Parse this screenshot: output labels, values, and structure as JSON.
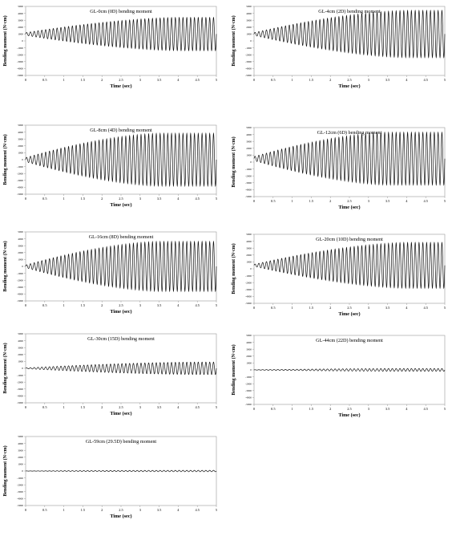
{
  "chart_data": [
    {
      "type": "line",
      "title": "GL-0cm (0D) bending moment",
      "xlabel": "Time (sec)",
      "ylabel": "Bending moment (N·cm)",
      "xlim": [
        0,
        5
      ],
      "ylim": [
        -5000,
        5000
      ],
      "xticks": [
        "0",
        "0.5",
        "1",
        "1.5",
        "2",
        "2.5",
        "3",
        "3.5",
        "4",
        "4.5",
        "5"
      ],
      "yticks": [
        "-5000",
        "-4000",
        "-3000",
        "-2000",
        "-1000",
        "0",
        "1000",
        "2000",
        "3000",
        "4000",
        "5000"
      ],
      "series": [
        {
          "frequency_hz": 10,
          "offset": 1000,
          "amplitude_start": 200,
          "amplitude_end": 2400,
          "ramp_end_time": 4
        }
      ]
    },
    {
      "type": "line",
      "title": "GL-4cm (2D) bending moment",
      "xlabel": "Time (sec)",
      "ylabel": "Bending moment (N·cm)",
      "xlim": [
        0,
        5
      ],
      "ylim": [
        -5000,
        5000
      ],
      "xticks": [
        "0",
        "0.5",
        "1",
        "1.5",
        "2",
        "2.5",
        "3",
        "3.5",
        "4",
        "4.5",
        "5"
      ],
      "yticks": [
        "-5000",
        "-4000",
        "-3000",
        "-2000",
        "-1000",
        "0",
        "1000",
        "2000",
        "3000",
        "4000",
        "5000"
      ],
      "series": [
        {
          "frequency_hz": 10,
          "offset": 1000,
          "amplitude_start": 200,
          "amplitude_end": 3400,
          "ramp_end_time": 4
        }
      ]
    },
    {
      "type": "line",
      "title": "GL-8cm (4D) bending moment",
      "xlabel": "Time (sec)",
      "ylabel": "Bending moment (N·cm)",
      "xlim": [
        0,
        5
      ],
      "ylim": [
        -5000,
        5000
      ],
      "xticks": [
        "0",
        "0.5",
        "1",
        "1.5",
        "2",
        "2.5",
        "3",
        "3.5",
        "4",
        "4.5",
        "5"
      ],
      "yticks": [
        "-5000",
        "-4000",
        "-3000",
        "-2000",
        "-1000",
        "0",
        "1000",
        "2000",
        "3000",
        "4000",
        "5000"
      ],
      "series": [
        {
          "frequency_hz": 10,
          "offset": 0,
          "amplitude_start": 300,
          "amplitude_end": 3800,
          "ramp_end_time": 3.5
        }
      ]
    },
    {
      "type": "line",
      "title": "GL-12cm (6D) bending moment",
      "xlabel": "Time (sec)",
      "ylabel": "Bending moment (N·cm)",
      "xlim": [
        0,
        5
      ],
      "ylim": [
        -5000,
        5000
      ],
      "xticks": [
        "0",
        "0.5",
        "1",
        "1.5",
        "2",
        "2.5",
        "3",
        "3.5",
        "4",
        "4.5",
        "5"
      ],
      "yticks": [
        "-5000",
        "-4000",
        "-3000",
        "-2000",
        "-1000",
        "0",
        "1000",
        "2000",
        "3000",
        "4000",
        "5000"
      ],
      "series": [
        {
          "frequency_hz": 10,
          "offset": 500,
          "amplitude_start": 300,
          "amplitude_end": 3800,
          "ramp_end_time": 3.5
        }
      ]
    },
    {
      "type": "line",
      "title": "GL-16cm (8D) bending moment",
      "xlabel": "Time (sec)",
      "ylabel": "Bending moment (N·cm)",
      "xlim": [
        0,
        5
      ],
      "ylim": [
        -5000,
        5000
      ],
      "xticks": [
        "0",
        "0.5",
        "1",
        "1.5",
        "2",
        "2.5",
        "3",
        "3.5",
        "4",
        "4.5",
        "5"
      ],
      "yticks": [
        "-5000",
        "-4000",
        "-3000",
        "-2000",
        "-1000",
        "0",
        "1000",
        "2000",
        "3000",
        "4000",
        "5000"
      ],
      "series": [
        {
          "frequency_hz": 10,
          "offset": 0,
          "amplitude_start": 200,
          "amplitude_end": 3600,
          "ramp_end_time": 3.5
        }
      ]
    },
    {
      "type": "line",
      "title": "GL-20cm (10D) bending moment",
      "xlabel": "Time (sec)",
      "ylabel": "Bending moment (N·cm)",
      "xlim": [
        0,
        5
      ],
      "ylim": [
        -5000,
        5000
      ],
      "xticks": [
        "0",
        "0.5",
        "1",
        "1.5",
        "2",
        "2.5",
        "3",
        "3.5",
        "4",
        "4.5",
        "5"
      ],
      "yticks": [
        "-5000",
        "-4000",
        "-3000",
        "-2000",
        "-1000",
        "0",
        "1000",
        "2000",
        "3000",
        "4000",
        "5000"
      ],
      "series": [
        {
          "frequency_hz": 10,
          "offset": 500,
          "amplitude_start": 150,
          "amplitude_end": 3300,
          "ramp_end_time": 4
        }
      ]
    },
    {
      "type": "line",
      "title": "GL-30cm (15D) bending moment",
      "xlabel": "Time (sec)",
      "ylabel": "Bending moment (N·cm)",
      "xlim": [
        0,
        5
      ],
      "ylim": [
        -5000,
        5000
      ],
      "xticks": [
        "0",
        "0.5",
        "1",
        "1.5",
        "2",
        "2.5",
        "3",
        "3.5",
        "4",
        "4.5",
        "5"
      ],
      "yticks": [
        "-5000",
        "-4000",
        "-3000",
        "-2000",
        "-1000",
        "0",
        "1000",
        "2000",
        "3000",
        "4000",
        "5000"
      ],
      "series": [
        {
          "frequency_hz": 10,
          "offset": 0,
          "amplitude_start": 50,
          "amplitude_end": 900,
          "ramp_end_time": 4.5
        }
      ]
    },
    {
      "type": "line",
      "title": "GL-44cm (22D) bending moment",
      "xlabel": "Time (sec)",
      "ylabel": "Bending moment (N·cm)",
      "xlim": [
        0,
        5
      ],
      "ylim": [
        -5000,
        5000
      ],
      "xticks": [
        "0",
        "0.5",
        "1",
        "1.5",
        "2",
        "2.5",
        "3",
        "3.5",
        "4",
        "4.5",
        "5"
      ],
      "yticks": [
        "-5000",
        "-4000",
        "-3000",
        "-2000",
        "-1000",
        "0",
        "1000",
        "2000",
        "3000",
        "4000",
        "5000"
      ],
      "series": [
        {
          "frequency_hz": 10,
          "offset": 0,
          "amplitude_start": 20,
          "amplitude_end": 200,
          "ramp_end_time": 4
        }
      ]
    },
    {
      "type": "line",
      "title": "GL-59cm (29.5D) bending moment",
      "xlabel": "Time (sec)",
      "ylabel": "Bending moment (N·cm)",
      "xlim": [
        0,
        5
      ],
      "ylim": [
        -5000,
        5000
      ],
      "xticks": [
        "0",
        "0.5",
        "1",
        "1.5",
        "2",
        "2.5",
        "3",
        "3.5",
        "4",
        "4.5",
        "5"
      ],
      "yticks": [
        "-5000",
        "-4000",
        "-3000",
        "-2000",
        "-1000",
        "0",
        "1000",
        "2000",
        "3000",
        "4000",
        "5000"
      ],
      "series": [
        {
          "frequency_hz": 10,
          "offset": 0,
          "amplitude_start": 10,
          "amplitude_end": 100,
          "ramp_end_time": 4
        }
      ]
    }
  ]
}
